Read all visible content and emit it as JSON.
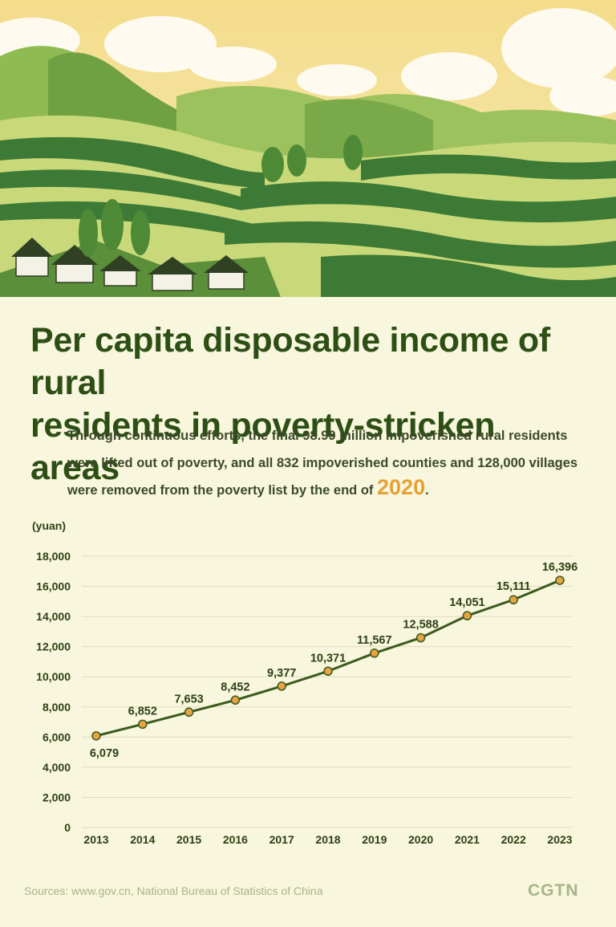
{
  "header": {
    "title_line1": "Per capita disposable income of rural",
    "title_line2": "residents in poverty-stricken areas",
    "description": "Through continuous efforts, the final 98.99 million impoverished rural residents were lifted out of poverty, and all 832 impoverished counties and 128,000 villages were removed from the poverty list by the end of",
    "highlight_year": "2020",
    "description_end": "."
  },
  "chart_data": {
    "type": "line",
    "title": "",
    "xlabel": "",
    "ylabel": "(yuan)",
    "x": [
      "2013",
      "2014",
      "2015",
      "2016",
      "2017",
      "2018",
      "2019",
      "2020",
      "2021",
      "2022",
      "2023"
    ],
    "series": [
      {
        "values": [
          6079,
          6852,
          7653,
          8452,
          9377,
          10371,
          11567,
          12588,
          14051,
          15111,
          16396
        ]
      }
    ],
    "data_labels": [
      "6,079",
      "6,852",
      "7,653",
      "8,452",
      "9,377",
      "10,371",
      "11,567",
      "12,588",
      "14,051",
      "15,111",
      "16,396"
    ],
    "ylim": [
      0,
      18000
    ],
    "yticks": [
      0,
      2000,
      4000,
      6000,
      8000,
      10000,
      12000,
      14000,
      16000,
      18000
    ],
    "ytick_labels": [
      "0",
      "2,000",
      "4,000",
      "6,000",
      "8,000",
      "10,000",
      "12,000",
      "14,000",
      "16,000",
      "18,000"
    ],
    "grid": true,
    "colors": {
      "line": "#3b5a1d",
      "marker_fill": "#e8a442",
      "marker_stroke": "#3b5a1d",
      "grid": "#dedbc2",
      "text": "#2d4016"
    }
  },
  "footer": {
    "source": "Sources: www.gov.cn, National Bureau of Statistics of China",
    "logo": "CGTN"
  },
  "colors": {
    "background": "#f8f6dc",
    "title": "#2d4f16",
    "accent": "#e7a035",
    "footer": "#a7b48a"
  }
}
